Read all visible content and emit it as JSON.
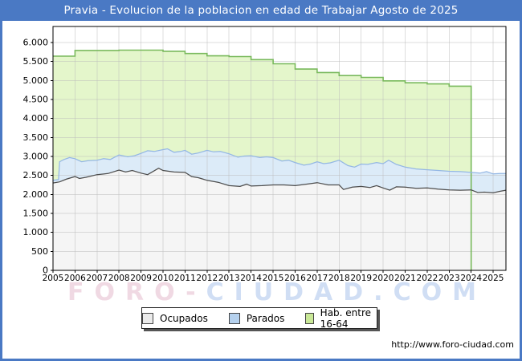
{
  "window": {
    "title": "Pravia - Evolucion de la poblacion en edad de Trabajar Agosto de 2025"
  },
  "watermark": {
    "part1": "FORO-",
    "part2": "CIUDAD.COM"
  },
  "footer": {
    "url": "http://www.foro-ciudad.com"
  },
  "colors": {
    "frame_blue": "#4a79c4",
    "plot_border": "#000000",
    "grid": "#bbbbbb",
    "background": "#ffffff",
    "hab_fill": "#e4f6cb",
    "hab_line": "#79b95c",
    "parados_fill": "#dcebf8",
    "parados_line": "#94b7e4",
    "ocupados_fill": "#f5f5f5",
    "ocupados_line": "#4d4d4d"
  },
  "legend": {
    "items": [
      {
        "label": "Ocupados",
        "swatch": "#ebebeb"
      },
      {
        "label": "Parados",
        "swatch": "#b5d1ee"
      },
      {
        "label": "Hab. entre 16-64",
        "swatch": "#c9e897"
      }
    ]
  },
  "chart_data": {
    "type": "area",
    "title": "Pravia - Evolucion de la poblacion en edad de Trabajar Agosto de 2025",
    "xlabel": "",
    "ylabel": "",
    "grid": true,
    "legend_position": "bottom",
    "x_axis": {
      "range": [
        2005,
        2025.58
      ],
      "tick_labels": [
        "2005",
        "2006",
        "2007",
        "2008",
        "2009",
        "2010",
        "2011",
        "2012",
        "2013",
        "2014",
        "2015",
        "2016",
        "2017",
        "2018",
        "2019",
        "2020",
        "2021",
        "2022",
        "2023",
        "2024",
        "2025"
      ]
    },
    "y_axis": {
      "range": [
        0,
        6000
      ],
      "tick_step": 500,
      "tick_labels": [
        "0",
        "500",
        "1.000",
        "1.500",
        "2.000",
        "2.500",
        "3.000",
        "3.500",
        "4.000",
        "4.500",
        "5.000",
        "5.500",
        "6.000"
      ]
    },
    "series": [
      {
        "name": "Hab. entre 16-64",
        "kind": "step-band",
        "fill": "#e4f6cb",
        "line": "#79b95c",
        "years": [
          2005,
          2006,
          2007,
          2008,
          2009,
          2010,
          2011,
          2012,
          2013,
          2014,
          2015,
          2016,
          2017,
          2018,
          2019,
          2020,
          2021,
          2022,
          2023
        ],
        "values": [
          5640,
          5790,
          5790,
          5800,
          5800,
          5770,
          5710,
          5650,
          5630,
          5550,
          5440,
          5300,
          5210,
          5130,
          5080,
          4990,
          4940,
          4910,
          4850
        ],
        "x_end": 2024.0
      },
      {
        "name": "Parados",
        "kind": "band",
        "fill": "#dcebf8",
        "line": "#94b7e4",
        "points": [
          [
            2005.0,
            2370
          ],
          [
            2005.25,
            2390
          ],
          [
            2005.3,
            2860
          ],
          [
            2005.5,
            2920
          ],
          [
            2005.75,
            2970
          ],
          [
            2006.0,
            2940
          ],
          [
            2006.3,
            2860
          ],
          [
            2006.6,
            2890
          ],
          [
            2007.0,
            2900
          ],
          [
            2007.3,
            2940
          ],
          [
            2007.6,
            2920
          ],
          [
            2008.0,
            3040
          ],
          [
            2008.4,
            2990
          ],
          [
            2008.7,
            3020
          ],
          [
            2009.0,
            3080
          ],
          [
            2009.3,
            3150
          ],
          [
            2009.6,
            3130
          ],
          [
            2010.0,
            3180
          ],
          [
            2010.2,
            3200
          ],
          [
            2010.5,
            3110
          ],
          [
            2010.8,
            3130
          ],
          [
            2011.0,
            3160
          ],
          [
            2011.3,
            3060
          ],
          [
            2011.6,
            3090
          ],
          [
            2012.0,
            3160
          ],
          [
            2012.3,
            3120
          ],
          [
            2012.6,
            3130
          ],
          [
            2013.0,
            3070
          ],
          [
            2013.4,
            2980
          ],
          [
            2013.7,
            3010
          ],
          [
            2014.0,
            3020
          ],
          [
            2014.4,
            2970
          ],
          [
            2014.7,
            2990
          ],
          [
            2015.0,
            2970
          ],
          [
            2015.4,
            2880
          ],
          [
            2015.7,
            2900
          ],
          [
            2016.0,
            2840
          ],
          [
            2016.4,
            2770
          ],
          [
            2016.7,
            2800
          ],
          [
            2017.0,
            2860
          ],
          [
            2017.3,
            2810
          ],
          [
            2017.6,
            2830
          ],
          [
            2018.0,
            2900
          ],
          [
            2018.4,
            2760
          ],
          [
            2018.7,
            2720
          ],
          [
            2019.0,
            2800
          ],
          [
            2019.3,
            2790
          ],
          [
            2019.7,
            2840
          ],
          [
            2020.0,
            2810
          ],
          [
            2020.25,
            2900
          ],
          [
            2020.6,
            2790
          ],
          [
            2021.0,
            2720
          ],
          [
            2021.5,
            2670
          ],
          [
            2022.0,
            2650
          ],
          [
            2022.5,
            2630
          ],
          [
            2023.0,
            2610
          ],
          [
            2023.5,
            2600
          ],
          [
            2024.0,
            2580
          ],
          [
            2024.4,
            2560
          ],
          [
            2024.7,
            2600
          ],
          [
            2025.0,
            2540
          ],
          [
            2025.3,
            2550
          ],
          [
            2025.58,
            2550
          ]
        ]
      },
      {
        "name": "Ocupados",
        "kind": "band",
        "fill": "#f5f5f5",
        "line": "#4d4d4d",
        "points": [
          [
            2005.0,
            2300
          ],
          [
            2005.3,
            2330
          ],
          [
            2005.6,
            2400
          ],
          [
            2006.0,
            2470
          ],
          [
            2006.2,
            2420
          ],
          [
            2006.5,
            2450
          ],
          [
            2007.0,
            2520
          ],
          [
            2007.5,
            2550
          ],
          [
            2008.0,
            2640
          ],
          [
            2008.3,
            2590
          ],
          [
            2008.6,
            2630
          ],
          [
            2009.0,
            2560
          ],
          [
            2009.3,
            2520
          ],
          [
            2009.8,
            2690
          ],
          [
            2010.0,
            2630
          ],
          [
            2010.5,
            2590
          ],
          [
            2011.0,
            2580
          ],
          [
            2011.3,
            2470
          ],
          [
            2011.6,
            2440
          ],
          [
            2012.0,
            2370
          ],
          [
            2012.5,
            2320
          ],
          [
            2013.0,
            2230
          ],
          [
            2013.5,
            2210
          ],
          [
            2013.8,
            2270
          ],
          [
            2014.0,
            2220
          ],
          [
            2014.5,
            2230
          ],
          [
            2015.0,
            2250
          ],
          [
            2015.5,
            2250
          ],
          [
            2016.0,
            2230
          ],
          [
            2016.5,
            2270
          ],
          [
            2017.0,
            2310
          ],
          [
            2017.5,
            2250
          ],
          [
            2018.0,
            2250
          ],
          [
            2018.2,
            2130
          ],
          [
            2018.6,
            2190
          ],
          [
            2019.0,
            2210
          ],
          [
            2019.4,
            2180
          ],
          [
            2019.7,
            2230
          ],
          [
            2020.0,
            2170
          ],
          [
            2020.3,
            2110
          ],
          [
            2020.6,
            2200
          ],
          [
            2021.0,
            2190
          ],
          [
            2021.5,
            2160
          ],
          [
            2022.0,
            2170
          ],
          [
            2022.5,
            2140
          ],
          [
            2023.0,
            2120
          ],
          [
            2023.5,
            2110
          ],
          [
            2024.0,
            2120
          ],
          [
            2024.3,
            2050
          ],
          [
            2024.6,
            2060
          ],
          [
            2025.0,
            2040
          ],
          [
            2025.3,
            2080
          ],
          [
            2025.58,
            2110
          ]
        ]
      }
    ]
  }
}
